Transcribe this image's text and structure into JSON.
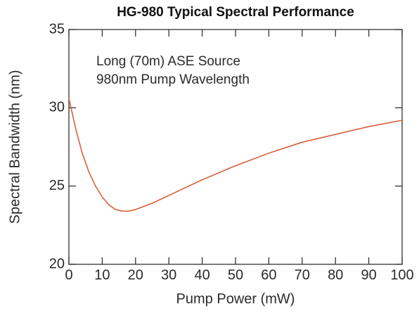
{
  "chart_data": {
    "type": "line",
    "title": "HG-980 Typical Spectral Performance",
    "annotations": [
      "Long (70m) ASE Source",
      "980nm Pump Wavelength"
    ],
    "xlabel": "Pump Power (mW)",
    "ylabel": "Spectral Bandwidth (nm)",
    "x": [
      0,
      2,
      4,
      6,
      8,
      10,
      12,
      14,
      16,
      18,
      20,
      25,
      30,
      40,
      50,
      60,
      70,
      80,
      90,
      100
    ],
    "series": [
      {
        "name": "HG-980",
        "color": "#d9603b",
        "values": [
          30.6,
          28.7,
          27.1,
          25.9,
          25.0,
          24.3,
          23.8,
          23.5,
          23.4,
          23.4,
          23.5,
          23.9,
          24.4,
          25.4,
          26.3,
          27.1,
          27.8,
          28.3,
          28.8,
          29.2
        ]
      }
    ],
    "xlim": [
      0,
      100
    ],
    "xticks": [
      0,
      10,
      20,
      30,
      40,
      50,
      60,
      70,
      80,
      90,
      100
    ],
    "ylim": [
      20,
      35
    ],
    "yticks": [
      20,
      25,
      30,
      35
    ],
    "grid": false
  }
}
